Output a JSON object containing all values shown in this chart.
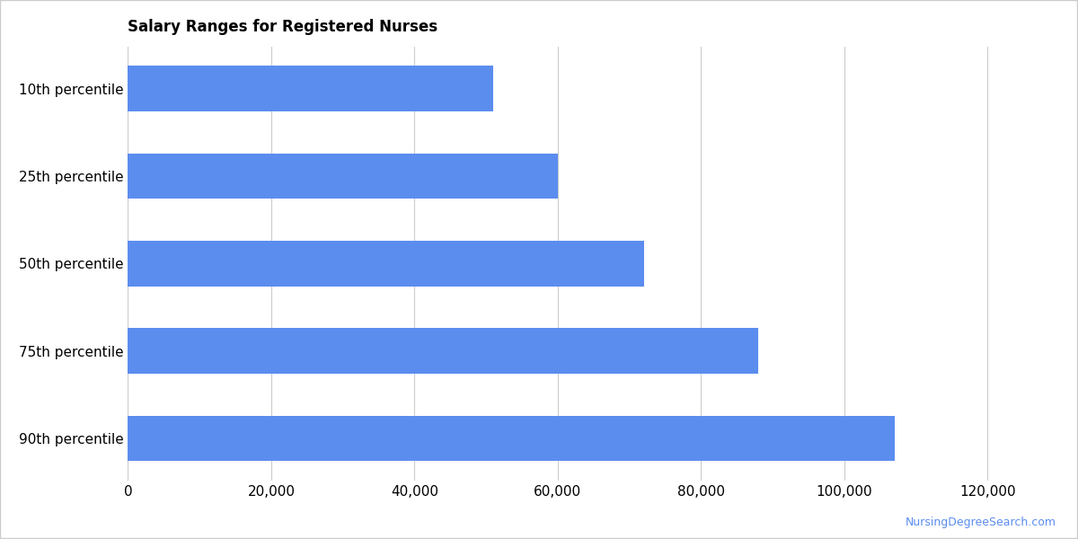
{
  "title": "Salary Ranges for Registered Nurses",
  "categories": [
    "10th percentile",
    "25th percentile",
    "50th percentile",
    "75th percentile",
    "90th percentile"
  ],
  "values": [
    51000,
    60000,
    72000,
    88000,
    107000
  ],
  "bar_color": "#5B8DEF",
  "xlim": [
    0,
    130000
  ],
  "xticks": [
    0,
    20000,
    40000,
    60000,
    80000,
    100000,
    120000
  ],
  "background_color": "#ffffff",
  "grid_color": "#cccccc",
  "title_fontsize": 12,
  "tick_fontsize": 11,
  "watermark": "NursingDegreeSearch.com",
  "watermark_color": "#5B8DEF",
  "border_color": "#cccccc"
}
